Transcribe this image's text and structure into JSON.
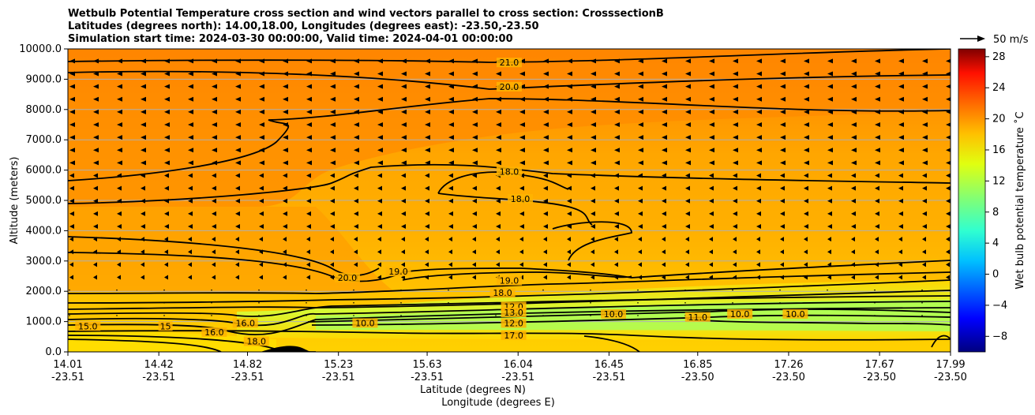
{
  "chart_data": {
    "type": "contour",
    "title_lines": [
      "Wetbulb Potential Temperature cross section and wind vectors parallel to cross section: CrosssectionB",
      "Latitudes (degrees north): 14.00,18.00, Longitudes (degrees east): -23.50,-23.50",
      "Simulation start time: 2024-03-30 00:00:00, Valid time: 2024-04-01 00:00:00"
    ],
    "xlabel_lat": "Latitude (degrees N)",
    "xlabel_lon": "Longitude (degrees E)",
    "ylabel": "Altitude (meters)",
    "x_ticks": [
      {
        "lat": "14.01",
        "lon": "-23.51"
      },
      {
        "lat": "14.42",
        "lon": "-23.51"
      },
      {
        "lat": "14.82",
        "lon": "-23.51"
      },
      {
        "lat": "15.23",
        "lon": "-23.51"
      },
      {
        "lat": "15.63",
        "lon": "-23.51"
      },
      {
        "lat": "16.04",
        "lon": "-23.51"
      },
      {
        "lat": "16.45",
        "lon": "-23.51"
      },
      {
        "lat": "16.85",
        "lon": "-23.50"
      },
      {
        "lat": "17.26",
        "lon": "-23.50"
      },
      {
        "lat": "17.67",
        "lon": "-23.50"
      },
      {
        "lat": "17.99",
        "lon": "-23.50"
      }
    ],
    "y_ticks": [
      "0.0",
      "1000.0",
      "2000.0",
      "3000.0",
      "4000.0",
      "5000.0",
      "6000.0",
      "7000.0",
      "8000.0",
      "9000.0",
      "10000.0"
    ],
    "ylim": [
      0,
      10000
    ],
    "grid": "horizontal",
    "colorbar": {
      "label": "Wet bulb potential temperature ˚C",
      "ticks": [
        "−8",
        "−4",
        "0",
        "4",
        "8",
        "12",
        "16",
        "20",
        "24",
        "28"
      ],
      "range": [
        -10,
        29
      ],
      "colormap": "jet"
    },
    "quiver_key": "50 m/s",
    "wind_direction": "toward lower latitude (southward) at upper levels",
    "contour_labels": [
      {
        "text": "21.0",
        "lat": 16.0,
        "alt": 9500
      },
      {
        "text": "20.0",
        "lat": 16.0,
        "alt": 8700
      },
      {
        "text": "18.0",
        "lat": 16.0,
        "alt": 5900
      },
      {
        "text": "18.0",
        "lat": 16.05,
        "alt": 5000
      },
      {
        "text": "20.0",
        "lat": 15.27,
        "alt": 2400
      },
      {
        "text": "19.0",
        "lat": 15.5,
        "alt": 2600
      },
      {
        "text": "19.0",
        "lat": 16.0,
        "alt": 2300
      },
      {
        "text": "18.0",
        "lat": 15.97,
        "alt": 1900
      },
      {
        "text": "12.0",
        "lat": 16.02,
        "alt": 1450
      },
      {
        "text": "13.0",
        "lat": 16.02,
        "alt": 1250
      },
      {
        "text": "12.0",
        "lat": 16.02,
        "alt": 900
      },
      {
        "text": "17.0",
        "lat": 16.02,
        "alt": 500
      },
      {
        "text": "15.0",
        "lat": 14.1,
        "alt": 800
      },
      {
        "text": "15",
        "lat": 14.45,
        "alt": 800
      },
      {
        "text": "16.0",
        "lat": 14.67,
        "alt": 600
      },
      {
        "text": "16.0",
        "lat": 14.81,
        "alt": 900
      },
      {
        "text": "18.0",
        "lat": 14.86,
        "alt": 300
      },
      {
        "text": "10.0",
        "lat": 16.47,
        "alt": 1200
      },
      {
        "text": "11.0",
        "lat": 16.85,
        "alt": 1100
      },
      {
        "text": "10.0",
        "lat": 17.04,
        "alt": 1200
      },
      {
        "text": "10.0",
        "lat": 17.29,
        "alt": 1200
      },
      {
        "text": "10.0",
        "lat": 15.35,
        "alt": 900
      }
    ]
  }
}
